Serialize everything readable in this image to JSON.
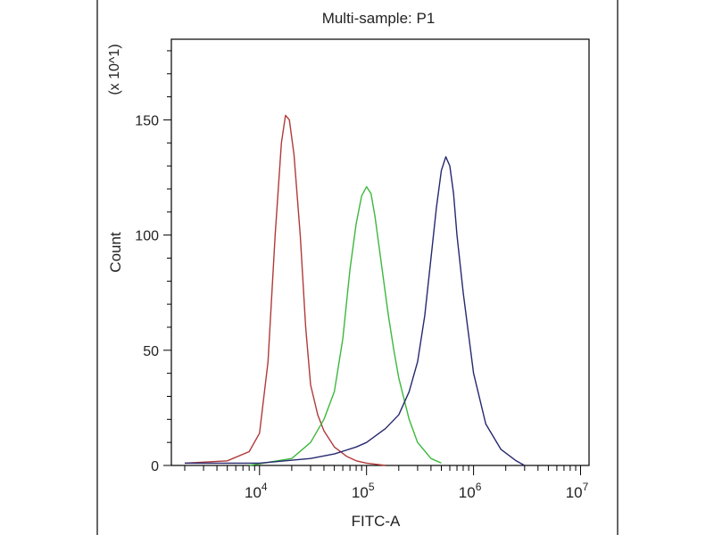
{
  "chart_data": {
    "type": "line",
    "title": "Multi-sample: P1",
    "xlabel": "FITC-A",
    "ylabel": "Count",
    "y_multiplier_label": "(x 10^1)",
    "x_scale": "log",
    "xlim": [
      1500,
      12000000
    ],
    "ylim": [
      0,
      185
    ],
    "x_ticks": [
      {
        "base": "10",
        "exp": "4",
        "value": 10000
      },
      {
        "base": "10",
        "exp": "5",
        "value": 100000
      },
      {
        "base": "10",
        "exp": "6",
        "value": 1000000
      },
      {
        "base": "10",
        "exp": "7",
        "value": 10000000
      }
    ],
    "y_ticks": [
      {
        "label": "0",
        "value": 0
      },
      {
        "label": "50",
        "value": 50
      },
      {
        "label": "100",
        "value": 100
      },
      {
        "label": "150",
        "value": 150
      }
    ],
    "grid": false,
    "series": [
      {
        "color": "#b03a3a",
        "x": [
          2000,
          5000,
          8000,
          10000,
          12000,
          14000,
          16000,
          17500,
          19000,
          21000,
          24000,
          27000,
          30000,
          35000,
          40000,
          50000,
          65000,
          80000,
          100000,
          150000
        ],
        "y": [
          1,
          2,
          6,
          14,
          45,
          100,
          140,
          152,
          150,
          135,
          100,
          60,
          35,
          22,
          15,
          8,
          4,
          2,
          1,
          0
        ]
      },
      {
        "color": "#3cb83c",
        "x": [
          8000,
          20000,
          30000,
          40000,
          50000,
          60000,
          70000,
          80000,
          90000,
          100000,
          110000,
          120000,
          140000,
          160000,
          180000,
          200000,
          250000,
          300000,
          400000,
          500000
        ],
        "y": [
          0,
          3,
          10,
          20,
          32,
          55,
          85,
          105,
          117,
          121,
          118,
          108,
          85,
          65,
          50,
          38,
          20,
          10,
          3,
          1
        ]
      },
      {
        "color": "#26286e",
        "x": [
          2000,
          10000,
          30000,
          50000,
          80000,
          100000,
          150000,
          200000,
          250000,
          300000,
          350000,
          400000,
          450000,
          500000,
          550000,
          600000,
          650000,
          700000,
          800000,
          1000000,
          1300000,
          1800000,
          2500000,
          3000000
        ],
        "y": [
          1,
          1,
          3,
          5,
          8,
          10,
          16,
          22,
          32,
          45,
          65,
          90,
          112,
          128,
          134,
          130,
          118,
          100,
          75,
          40,
          18,
          7,
          2,
          0
        ]
      }
    ]
  }
}
